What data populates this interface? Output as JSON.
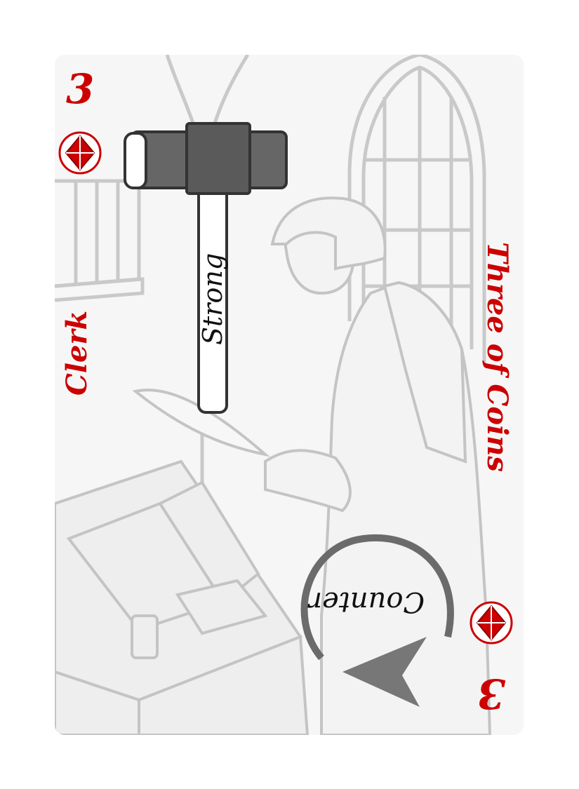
{
  "card": {
    "rank": "3",
    "title": "Three of Coins",
    "name": "Clerk",
    "suit_icon": "diamond-suit-icon",
    "keyword": "Strong",
    "action": "Counter",
    "colors": {
      "accent": "#cc0000",
      "art_line": "#b8b8b8",
      "hammer": "#666666"
    }
  }
}
